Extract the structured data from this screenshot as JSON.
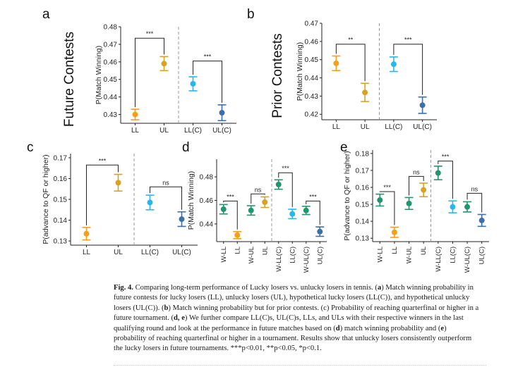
{
  "colors": {
    "LL": "#f2a01e",
    "UL": "#d6a326",
    "LLC": "#29b6ec",
    "ULC": "#3d6fa8",
    "WLL": "#23956d",
    "WUL": "#23956d"
  },
  "chart_data": [
    {
      "panel": "a",
      "type": "scatter",
      "title": "Future Contests",
      "ylabel": "P(Match Winning)",
      "ylim": [
        0.425,
        0.48
      ],
      "ticks": [
        0.43,
        0.44,
        0.45,
        0.46,
        0.47,
        0.48
      ],
      "categories": [
        "LL",
        "UL",
        "LL(C)",
        "UL(C)"
      ],
      "series_keys": [
        "LL",
        "UL",
        "LLC",
        "ULC"
      ],
      "values": [
        0.43,
        0.459,
        0.4475,
        0.431
      ],
      "errors": [
        0.003,
        0.004,
        0.004,
        0.0045
      ],
      "divider_after": 2,
      "brackets": [
        {
          "from": 0,
          "to": 1,
          "label": "***",
          "y": 0.4735
        },
        {
          "from": 2,
          "to": 3,
          "label": "***",
          "y": 0.4605
        }
      ]
    },
    {
      "panel": "b",
      "type": "scatter",
      "title": "Prior Contests",
      "ylabel": "P(Match Winning)",
      "ylim": [
        0.417,
        0.47
      ],
      "ticks": [
        0.42,
        0.43,
        0.44,
        0.45,
        0.46,
        0.47
      ],
      "categories": [
        "LL",
        "UL",
        "LL(C)",
        "UL(C)"
      ],
      "series_keys": [
        "LL",
        "UL",
        "LLC",
        "ULC"
      ],
      "values": [
        0.448,
        0.432,
        0.4475,
        0.425
      ],
      "errors": [
        0.004,
        0.005,
        0.004,
        0.0045
      ],
      "divider_after": 2,
      "brackets": [
        {
          "from": 0,
          "to": 1,
          "label": "**",
          "y": 0.4585
        },
        {
          "from": 2,
          "to": 3,
          "label": "***",
          "y": 0.4585
        }
      ]
    },
    {
      "panel": "c",
      "type": "scatter",
      "title": "",
      "ylabel": "P(advance to QF or higher)",
      "ylim": [
        0.128,
        0.172
      ],
      "ticks": [
        0.13,
        0.14,
        0.15,
        0.16,
        0.17
      ],
      "categories": [
        "LL",
        "UL",
        "LL(C)",
        "UL(C)"
      ],
      "series_keys": [
        "LL",
        "UL",
        "LLC",
        "ULC"
      ],
      "values": [
        0.1335,
        0.158,
        0.1485,
        0.1405
      ],
      "errors": [
        0.003,
        0.004,
        0.0035,
        0.0035
      ],
      "divider_after": 2,
      "brackets": [
        {
          "from": 0,
          "to": 1,
          "label": "***",
          "y": 0.1665
        },
        {
          "from": 2,
          "to": 3,
          "label": "ns",
          "y": 0.156
        }
      ]
    },
    {
      "panel": "d",
      "type": "scatter",
      "title": "",
      "ylabel": "P(Match Winning)",
      "ylim": [
        0.425,
        0.495
      ],
      "ticks": [
        0.44,
        0.46,
        0.48
      ],
      "categories": [
        "W-LL",
        "LL",
        "W-UL",
        "UL",
        "W-LL(C)",
        "LL(C)",
        "W-UL(C)",
        "UL(C)"
      ],
      "series_keys": [
        "WLL",
        "LL",
        "WUL",
        "UL",
        "WLL",
        "LLC",
        "WUL",
        "ULC"
      ],
      "values": [
        0.4525,
        0.4305,
        0.4515,
        0.4585,
        0.4735,
        0.4485,
        0.4515,
        0.4335
      ],
      "errors": [
        0.004,
        0.003,
        0.004,
        0.0045,
        0.004,
        0.004,
        0.0035,
        0.004
      ],
      "divider_after": 4,
      "brackets": [
        {
          "from": 0,
          "to": 1,
          "label": "***",
          "y": 0.4595
        },
        {
          "from": 2,
          "to": 3,
          "label": "ns",
          "y": 0.4655
        },
        {
          "from": 4,
          "to": 5,
          "label": "***",
          "y": 0.4835
        },
        {
          "from": 6,
          "to": 7,
          "label": "***",
          "y": 0.4595
        }
      ]
    },
    {
      "panel": "e",
      "type": "scatter",
      "title": "",
      "ylabel": "P(advance to QF or higher)",
      "ylim": [
        0.128,
        0.182
      ],
      "ticks": [
        0.13,
        0.14,
        0.15,
        0.16,
        0.17,
        0.18
      ],
      "categories": [
        "W-LL",
        "LL",
        "W-UL",
        "UL",
        "W-LL(C)",
        "LL(C)",
        "W-UL(C)",
        "UL(C)"
      ],
      "series_keys": [
        "WLL",
        "LL",
        "WUL",
        "UL",
        "WLL",
        "LLC",
        "WUL",
        "ULC"
      ],
      "values": [
        0.1525,
        0.1335,
        0.1505,
        0.1585,
        0.1685,
        0.1485,
        0.1485,
        0.1405
      ],
      "errors": [
        0.0035,
        0.003,
        0.0035,
        0.004,
        0.004,
        0.0035,
        0.003,
        0.0035
      ],
      "divider_after": 4,
      "brackets": [
        {
          "from": 0,
          "to": 1,
          "label": "***",
          "y": 0.1575
        },
        {
          "from": 2,
          "to": 3,
          "label": "ns",
          "y": 0.1665
        },
        {
          "from": 4,
          "to": 5,
          "label": "***",
          "y": 0.1755
        },
        {
          "from": 6,
          "to": 7,
          "label": "ns",
          "y": 0.1565
        }
      ]
    }
  ],
  "caption": {
    "fig_label": "Fig. 4.",
    "parts": [
      {
        "t": "  Comparing long-term performance of Lucky losers vs. unlucky losers in tennis. (",
        "b": false
      },
      {
        "t": "a",
        "b": true
      },
      {
        "t": ") Match winning probability in future contests for lucky losers (LL), unlucky losers (UL), hypothetical lucky losers (LL(C)), and hypothetical unlucky losers (UL(C)). (",
        "b": false
      },
      {
        "t": "b",
        "b": true
      },
      {
        "t": ") Match winning probability but for prior contests. (c) Probability of reaching quarterfinal or higher in a future tournament. (",
        "b": false
      },
      {
        "t": "d, e",
        "b": true
      },
      {
        "t": ") We further compare LL(C)s, UL(C)s, LLs, and ULs with their respective winners in the last qualifying round and look at the performance in future matches based on (",
        "b": false
      },
      {
        "t": "d",
        "b": true
      },
      {
        "t": ") match winning probability and (",
        "b": false
      },
      {
        "t": "e",
        "b": true
      },
      {
        "t": ") probability of reaching quarterfinal or higher in a tournament. Results show that unlucky losers consistently outperform the lucky losers in future tournaments. ***p<0.01, **p<0.05, *p<0.1.",
        "b": false
      }
    ]
  }
}
